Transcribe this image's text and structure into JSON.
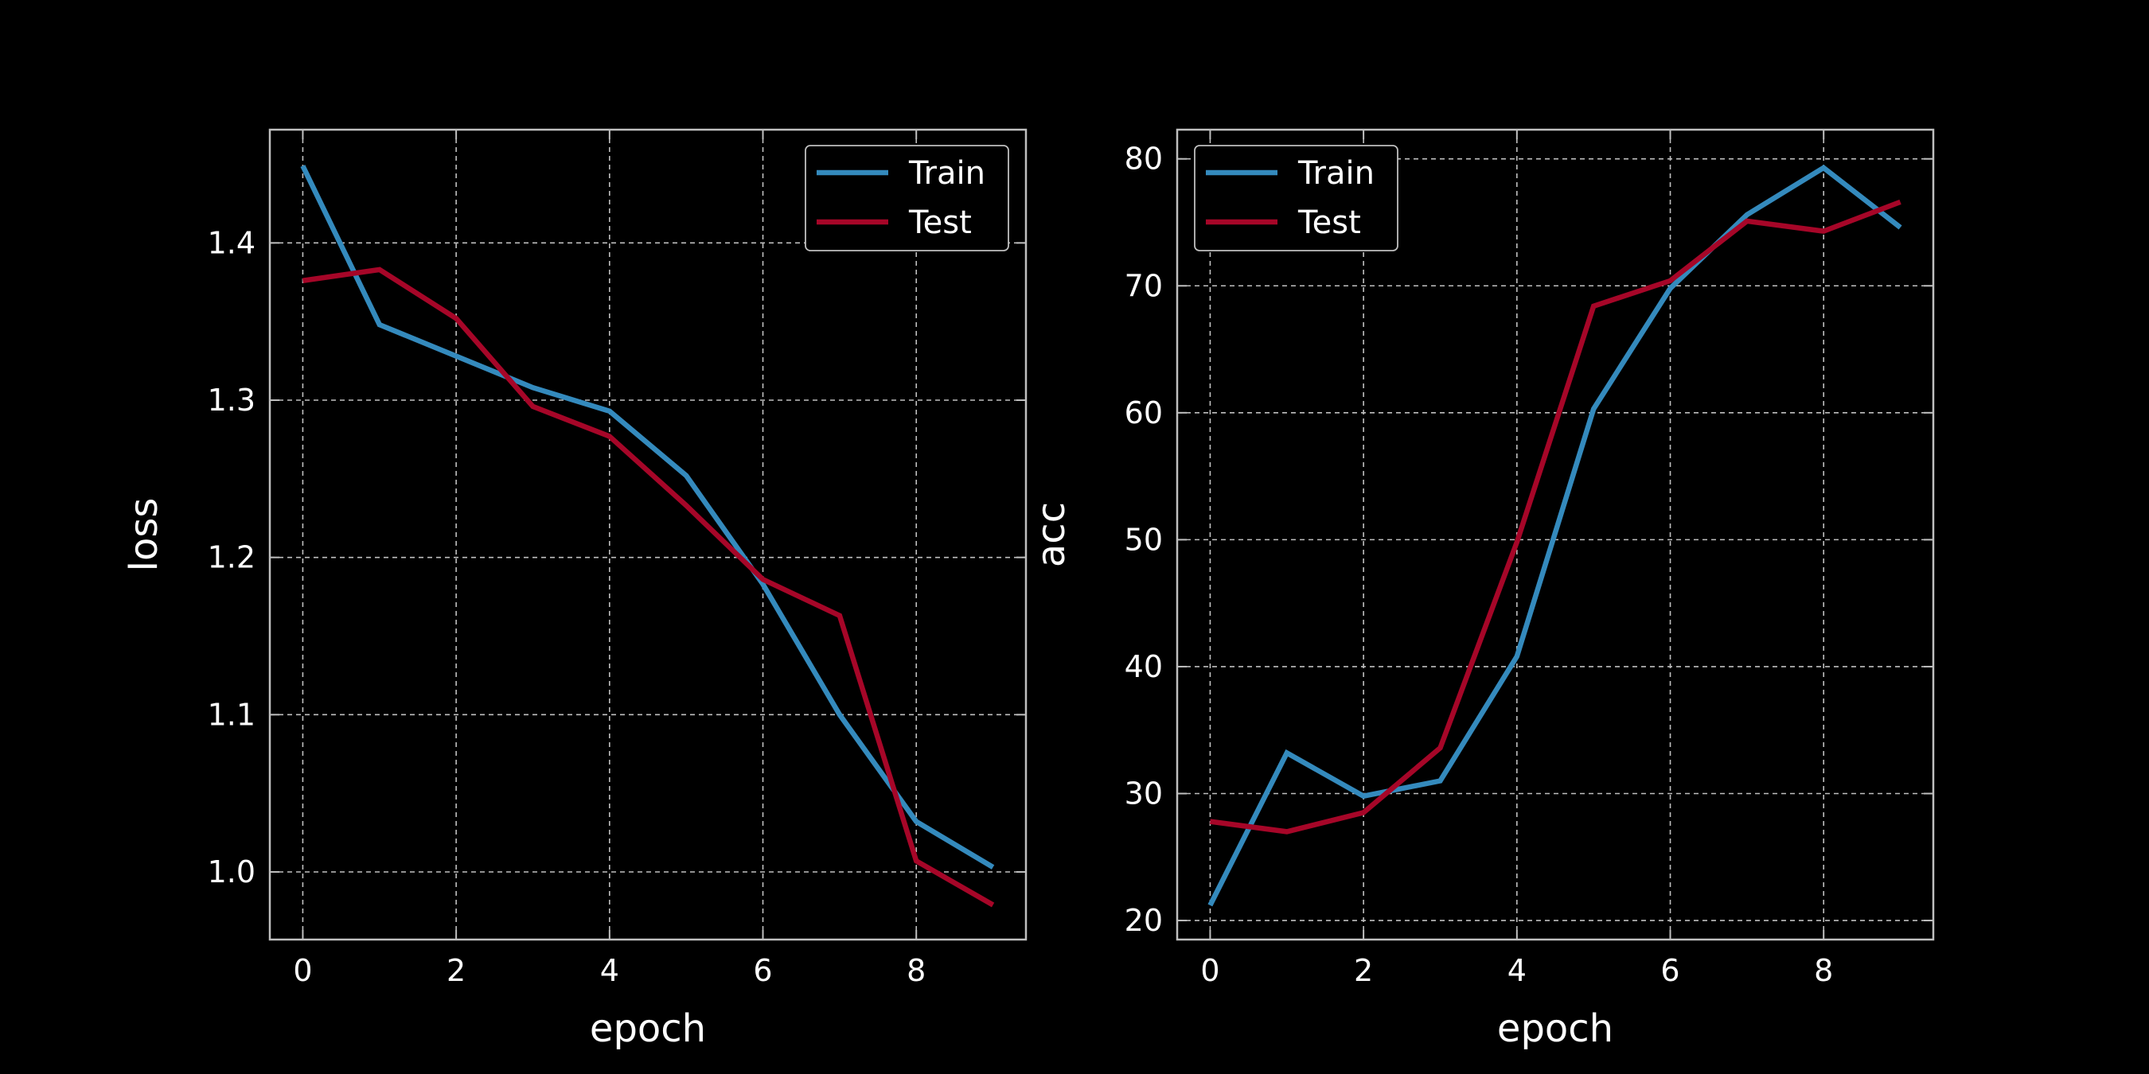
{
  "chart_data": [
    {
      "type": "line",
      "xlabel": "epoch",
      "ylabel": "loss",
      "xlim": [
        -0.43,
        9.43
      ],
      "ylim": [
        0.957,
        1.472
      ],
      "xticks": [
        0,
        2,
        4,
        6,
        8
      ],
      "yticks": [
        1.0,
        1.1,
        1.2,
        1.3,
        1.4
      ],
      "ytick_decimals": 1,
      "grid": true,
      "legend_position": "top-right",
      "x": [
        0,
        1,
        2,
        3,
        4,
        5,
        6,
        7,
        8,
        9
      ],
      "series": [
        {
          "name": "Train",
          "color": "#348abd",
          "values": [
            1.449,
            1.348,
            1.328,
            1.308,
            1.293,
            1.252,
            1.183,
            1.1,
            1.032,
            1.003
          ]
        },
        {
          "name": "Test",
          "color": "#a60628",
          "values": [
            1.376,
            1.383,
            1.352,
            1.296,
            1.277,
            1.233,
            1.186,
            1.163,
            1.007,
            0.979
          ]
        }
      ]
    },
    {
      "type": "line",
      "xlabel": "epoch",
      "ylabel": "acc",
      "xlim": [
        -0.43,
        9.43
      ],
      "ylim": [
        18.5,
        82.3
      ],
      "xticks": [
        0,
        2,
        4,
        6,
        8
      ],
      "yticks": [
        20,
        30,
        40,
        50,
        60,
        70,
        80
      ],
      "ytick_decimals": 0,
      "grid": true,
      "legend_position": "top-left",
      "x": [
        0,
        1,
        2,
        3,
        4,
        5,
        6,
        7,
        8,
        9
      ],
      "series": [
        {
          "name": "Train",
          "color": "#348abd",
          "values": [
            21.2,
            33.2,
            29.8,
            31.0,
            40.8,
            60.3,
            69.8,
            75.6,
            79.3,
            74.6
          ]
        },
        {
          "name": "Test",
          "color": "#a60628",
          "values": [
            27.8,
            27.0,
            28.5,
            33.6,
            49.8,
            68.4,
            70.4,
            75.1,
            74.3,
            76.6
          ]
        }
      ]
    }
  ]
}
